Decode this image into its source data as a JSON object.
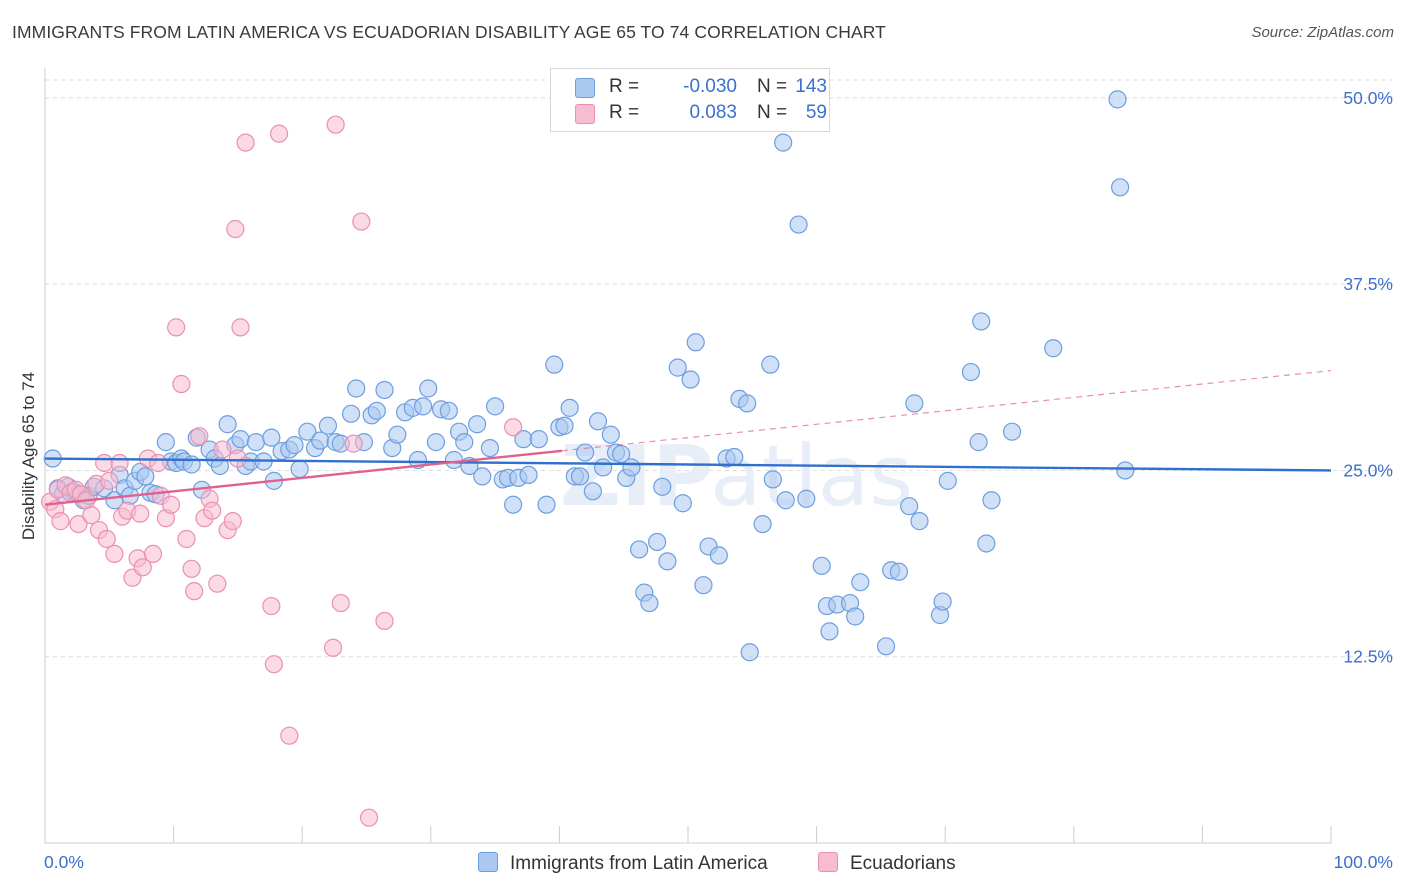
{
  "header": {
    "title": "IMMIGRANTS FROM LATIN AMERICA VS ECUADORIAN DISABILITY AGE 65 TO 74 CORRELATION CHART",
    "source": "Source: ZipAtlas.com"
  },
  "legend": {
    "rows": [
      {
        "r_label": "R =",
        "r_value": "-0.030",
        "n_label": "N =",
        "n_value": "143"
      },
      {
        "r_label": "R =",
        "r_value": "0.083",
        "n_label": "N =",
        "n_value": "59"
      }
    ]
  },
  "bottom_legend": [
    "Immigrants from Latin America",
    "Ecuadorians"
  ],
  "colors": {
    "blue_fill": "#aac8f0",
    "blue_stroke": "#6d9ee0",
    "blue_line": "#2f6fce",
    "pink_fill": "#f7bcd0",
    "pink_stroke": "#ec8fb0",
    "pink_line": "#e0608e",
    "axis_label": "#3b6fd0",
    "grid": "#dddddd"
  },
  "chart_data": {
    "type": "scatter",
    "title": "IMMIGRANTS FROM LATIN AMERICA VS ECUADORIAN DISABILITY AGE 65 TO 74 CORRELATION CHART",
    "ylabel": "Disability Age 65 to 74",
    "xlabel": "",
    "x_tick_labels": [
      "0.0%",
      "100.0%"
    ],
    "y_tick_labels": [
      "12.5%",
      "25.0%",
      "37.5%",
      "50.0%"
    ],
    "y_ticks": [
      12.5,
      25.0,
      37.5,
      50.0
    ],
    "xlim": [
      0,
      100
    ],
    "ylim": [
      0,
      51.2
    ],
    "grid": true,
    "watermark": "ZIPatlas",
    "series": [
      {
        "name": "Immigrants from Latin America",
        "color": "#aac8f0",
        "trend": {
          "x0": 0,
          "y0": 25.8,
          "x1": 100,
          "y1": 25.0,
          "solid_until": 100
        },
        "points": [
          [
            0.6,
            25.8
          ],
          [
            1.0,
            23.8
          ],
          [
            1.4,
            23.4
          ],
          [
            1.8,
            23.9
          ],
          [
            2.2,
            23.6
          ],
          [
            2.6,
            23.4
          ],
          [
            3.0,
            23.0
          ],
          [
            3.4,
            23.3
          ],
          [
            3.8,
            23.9
          ],
          [
            4.6,
            23.8
          ],
          [
            5.4,
            23.0
          ],
          [
            5.8,
            24.7
          ],
          [
            6.2,
            23.8
          ],
          [
            6.6,
            23.3
          ],
          [
            7.0,
            24.3
          ],
          [
            7.4,
            24.9
          ],
          [
            7.8,
            24.6
          ],
          [
            8.2,
            23.5
          ],
          [
            8.6,
            23.4
          ],
          [
            9.4,
            26.9
          ],
          [
            9.8,
            25.6
          ],
          [
            10.2,
            25.5
          ],
          [
            10.6,
            25.8
          ],
          [
            10.8,
            25.6
          ],
          [
            11.4,
            25.4
          ],
          [
            11.8,
            27.2
          ],
          [
            12.2,
            23.7
          ],
          [
            12.8,
            26.4
          ],
          [
            13.2,
            25.8
          ],
          [
            13.6,
            25.3
          ],
          [
            14.2,
            28.1
          ],
          [
            14.8,
            26.7
          ],
          [
            15.2,
            27.1
          ],
          [
            15.6,
            25.3
          ],
          [
            16.0,
            25.6
          ],
          [
            16.4,
            26.9
          ],
          [
            17.0,
            25.6
          ],
          [
            17.6,
            27.2
          ],
          [
            17.8,
            24.3
          ],
          [
            18.4,
            26.3
          ],
          [
            19.0,
            26.4
          ],
          [
            19.4,
            26.7
          ],
          [
            19.8,
            25.1
          ],
          [
            20.4,
            27.6
          ],
          [
            21.0,
            26.5
          ],
          [
            21.4,
            27.0
          ],
          [
            22.0,
            28.0
          ],
          [
            22.6,
            26.9
          ],
          [
            23.0,
            26.8
          ],
          [
            23.8,
            28.8
          ],
          [
            24.2,
            30.5
          ],
          [
            24.8,
            26.9
          ],
          [
            25.4,
            28.7
          ],
          [
            25.8,
            29.0
          ],
          [
            26.4,
            30.4
          ],
          [
            27.0,
            26.5
          ],
          [
            27.4,
            27.4
          ],
          [
            28.0,
            28.9
          ],
          [
            28.6,
            29.2
          ],
          [
            29.0,
            25.7
          ],
          [
            29.4,
            29.3
          ],
          [
            29.8,
            30.5
          ],
          [
            30.4,
            26.9
          ],
          [
            30.8,
            29.1
          ],
          [
            31.4,
            29.0
          ],
          [
            31.8,
            25.7
          ],
          [
            32.2,
            27.6
          ],
          [
            32.6,
            26.9
          ],
          [
            33.0,
            25.3
          ],
          [
            33.6,
            28.1
          ],
          [
            34.0,
            24.6
          ],
          [
            34.6,
            26.5
          ],
          [
            35.0,
            29.3
          ],
          [
            35.6,
            24.4
          ],
          [
            36.0,
            24.5
          ],
          [
            36.4,
            22.7
          ],
          [
            36.8,
            24.5
          ],
          [
            37.2,
            27.1
          ],
          [
            37.6,
            24.7
          ],
          [
            38.4,
            27.1
          ],
          [
            39.0,
            22.7
          ],
          [
            39.6,
            32.1
          ],
          [
            40.0,
            27.9
          ],
          [
            40.4,
            28.0
          ],
          [
            40.8,
            29.2
          ],
          [
            41.2,
            24.6
          ],
          [
            41.6,
            24.6
          ],
          [
            42.0,
            26.2
          ],
          [
            42.6,
            23.6
          ],
          [
            43.0,
            28.3
          ],
          [
            43.4,
            25.2
          ],
          [
            44.0,
            27.4
          ],
          [
            44.4,
            26.2
          ],
          [
            44.8,
            26.1
          ],
          [
            45.2,
            24.5
          ],
          [
            45.6,
            25.2
          ],
          [
            46.2,
            19.7
          ],
          [
            46.6,
            16.8
          ],
          [
            47.0,
            16.1
          ],
          [
            47.6,
            20.2
          ],
          [
            48.0,
            23.9
          ],
          [
            48.4,
            18.9
          ],
          [
            49.2,
            31.9
          ],
          [
            49.6,
            22.8
          ],
          [
            50.2,
            31.1
          ],
          [
            50.6,
            33.6
          ],
          [
            51.2,
            17.3
          ],
          [
            51.6,
            19.9
          ],
          [
            52.4,
            19.3
          ],
          [
            53.0,
            25.8
          ],
          [
            53.6,
            25.9
          ],
          [
            54.0,
            29.8
          ],
          [
            54.6,
            29.5
          ],
          [
            54.8,
            12.8
          ],
          [
            55.8,
            21.4
          ],
          [
            56.4,
            32.1
          ],
          [
            56.6,
            24.4
          ],
          [
            57.4,
            47.0
          ],
          [
            57.6,
            23.0
          ],
          [
            58.6,
            41.5
          ],
          [
            59.2,
            23.1
          ],
          [
            60.4,
            18.6
          ],
          [
            60.8,
            15.9
          ],
          [
            61.0,
            14.2
          ],
          [
            61.6,
            16.0
          ],
          [
            62.6,
            16.1
          ],
          [
            63.4,
            17.5
          ],
          [
            63.0,
            15.2
          ],
          [
            65.4,
            13.2
          ],
          [
            65.8,
            18.3
          ],
          [
            66.4,
            18.2
          ],
          [
            67.2,
            22.6
          ],
          [
            67.6,
            29.5
          ],
          [
            68.0,
            21.6
          ],
          [
            69.6,
            15.3
          ],
          [
            69.8,
            16.2
          ],
          [
            70.2,
            24.3
          ],
          [
            72.0,
            31.6
          ],
          [
            72.8,
            35.0
          ],
          [
            72.6,
            26.9
          ],
          [
            73.2,
            20.1
          ],
          [
            73.6,
            23.0
          ],
          [
            75.2,
            27.6
          ],
          [
            78.4,
            33.2
          ],
          [
            83.4,
            49.9
          ],
          [
            83.6,
            44.0
          ],
          [
            84.0,
            25.0
          ]
        ]
      },
      {
        "name": "Ecuadorians",
        "color": "#f7bcd0",
        "trend": {
          "x0": 0,
          "y0": 22.7,
          "x1": 100,
          "y1": 31.7,
          "solid_until": 40.2
        },
        "points": [
          [
            0.4,
            22.9
          ],
          [
            0.8,
            22.4
          ],
          [
            1.0,
            23.7
          ],
          [
            1.2,
            21.6
          ],
          [
            1.6,
            24.0
          ],
          [
            2.0,
            23.5
          ],
          [
            2.4,
            23.7
          ],
          [
            2.6,
            21.4
          ],
          [
            2.8,
            23.4
          ],
          [
            3.2,
            23.0
          ],
          [
            3.6,
            22.0
          ],
          [
            4.0,
            24.1
          ],
          [
            4.2,
            21.0
          ],
          [
            4.6,
            25.5
          ],
          [
            4.8,
            20.4
          ],
          [
            5.0,
            24.3
          ],
          [
            5.4,
            19.4
          ],
          [
            5.8,
            25.5
          ],
          [
            6.0,
            21.9
          ],
          [
            6.4,
            22.3
          ],
          [
            6.8,
            17.8
          ],
          [
            7.2,
            19.1
          ],
          [
            7.4,
            22.1
          ],
          [
            7.6,
            18.5
          ],
          [
            8.0,
            25.8
          ],
          [
            8.4,
            19.4
          ],
          [
            8.8,
            25.5
          ],
          [
            9.0,
            23.3
          ],
          [
            9.4,
            21.8
          ],
          [
            9.8,
            22.7
          ],
          [
            10.2,
            34.6
          ],
          [
            10.6,
            30.8
          ],
          [
            11.0,
            20.4
          ],
          [
            11.4,
            18.4
          ],
          [
            11.6,
            16.9
          ],
          [
            12.0,
            27.3
          ],
          [
            12.4,
            21.8
          ],
          [
            12.8,
            23.1
          ],
          [
            13.0,
            22.3
          ],
          [
            13.4,
            17.4
          ],
          [
            13.8,
            26.4
          ],
          [
            14.2,
            21.0
          ],
          [
            14.6,
            21.6
          ],
          [
            15.0,
            25.8
          ],
          [
            14.8,
            41.2
          ],
          [
            15.2,
            34.6
          ],
          [
            15.6,
            47.0
          ],
          [
            17.6,
            15.9
          ],
          [
            17.8,
            12.0
          ],
          [
            18.2,
            47.6
          ],
          [
            19.0,
            7.2
          ],
          [
            22.4,
            13.1
          ],
          [
            22.6,
            48.2
          ],
          [
            23.0,
            16.1
          ],
          [
            24.0,
            26.8
          ],
          [
            24.6,
            41.7
          ],
          [
            25.2,
            1.7
          ],
          [
            26.4,
            14.9
          ],
          [
            36.4,
            27.9
          ]
        ]
      }
    ]
  }
}
